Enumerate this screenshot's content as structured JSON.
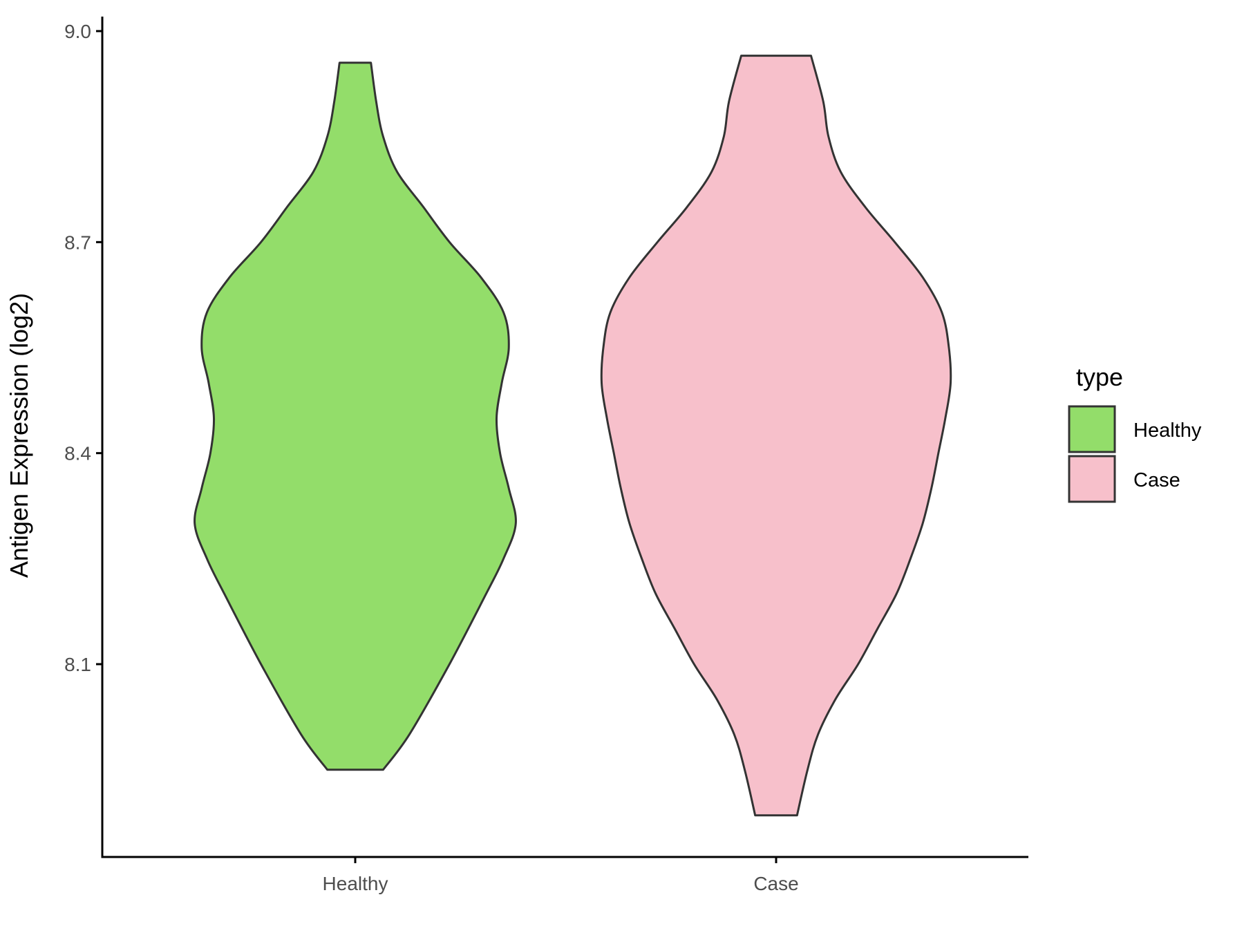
{
  "chart_data": {
    "type": "violin",
    "ylabel": "Antigen Expression (log2)",
    "xlabel": "",
    "categories": [
      "Healthy",
      "Case"
    ],
    "y_ticks": [
      8.1,
      8.4,
      8.7,
      9.0
    ],
    "y_tick_labels": [
      "8.1",
      "8.4",
      "8.7",
      "9.0"
    ],
    "ylim": [
      7.86,
      9.02
    ],
    "legend": {
      "title": "type",
      "position": "right",
      "entries": [
        {
          "label": "Healthy",
          "color": "#93DD6A"
        },
        {
          "label": "Case",
          "color": "#F7C0CB"
        }
      ]
    },
    "series": [
      {
        "category": "Healthy",
        "color": "#93DD6A",
        "min": 7.95,
        "max": 8.955,
        "density_profile": [
          [
            7.95,
            0.16
          ],
          [
            8.0,
            0.31
          ],
          [
            8.1,
            0.54
          ],
          [
            8.2,
            0.75
          ],
          [
            8.25,
            0.85
          ],
          [
            8.3,
            0.92
          ],
          [
            8.35,
            0.88
          ],
          [
            8.4,
            0.83
          ],
          [
            8.45,
            0.81
          ],
          [
            8.5,
            0.84
          ],
          [
            8.55,
            0.88
          ],
          [
            8.6,
            0.85
          ],
          [
            8.65,
            0.72
          ],
          [
            8.7,
            0.54
          ],
          [
            8.75,
            0.39
          ],
          [
            8.8,
            0.24
          ],
          [
            8.85,
            0.16
          ],
          [
            8.9,
            0.12
          ],
          [
            8.955,
            0.09
          ]
        ]
      },
      {
        "category": "Case",
        "color": "#F7C0CB",
        "min": 7.885,
        "max": 8.965,
        "density_profile": [
          [
            7.885,
            0.12
          ],
          [
            7.95,
            0.18
          ],
          [
            8.0,
            0.24
          ],
          [
            8.05,
            0.34
          ],
          [
            8.1,
            0.47
          ],
          [
            8.15,
            0.58
          ],
          [
            8.2,
            0.69
          ],
          [
            8.25,
            0.77
          ],
          [
            8.3,
            0.84
          ],
          [
            8.35,
            0.89
          ],
          [
            8.4,
            0.93
          ],
          [
            8.45,
            0.97
          ],
          [
            8.5,
            1.0
          ],
          [
            8.55,
            0.99
          ],
          [
            8.6,
            0.95
          ],
          [
            8.65,
            0.84
          ],
          [
            8.7,
            0.68
          ],
          [
            8.75,
            0.51
          ],
          [
            8.8,
            0.37
          ],
          [
            8.85,
            0.3
          ],
          [
            8.9,
            0.27
          ],
          [
            8.965,
            0.2
          ]
        ]
      }
    ]
  }
}
